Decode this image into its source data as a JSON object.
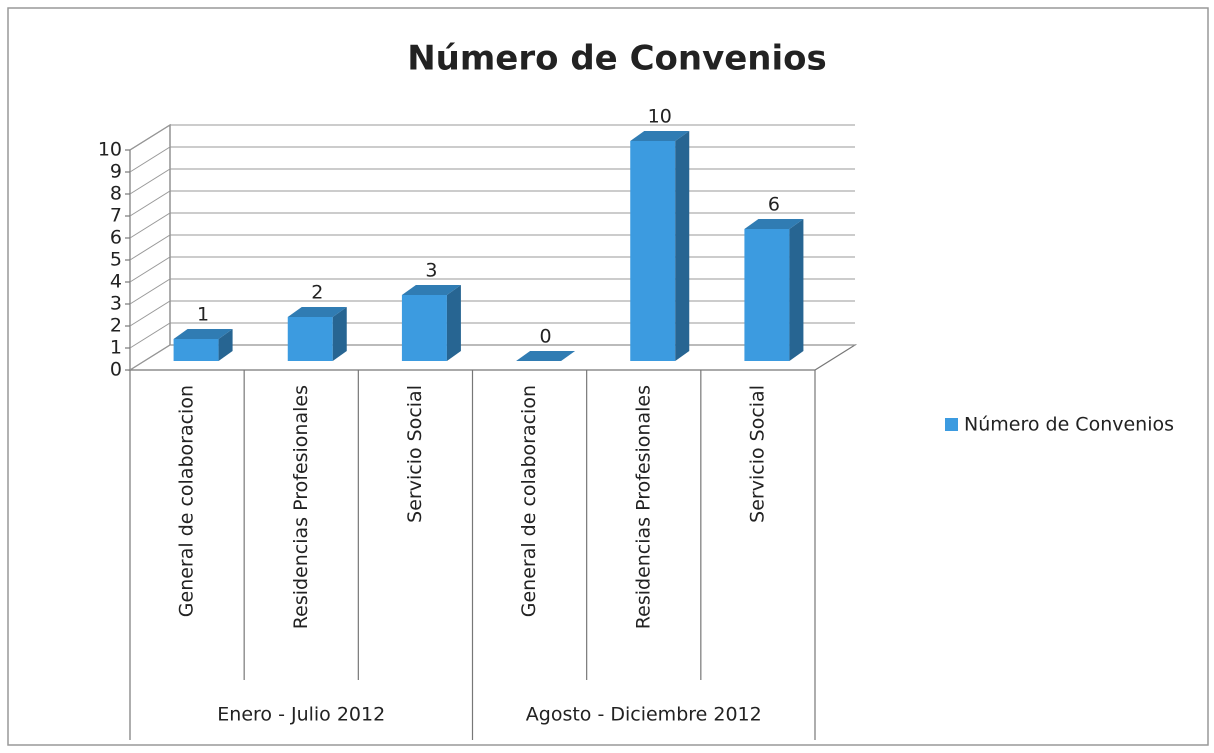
{
  "chart_data": {
    "type": "bar3d",
    "title": "Número de Convenios",
    "categories": [
      "General de colaboracion",
      "Residencias Profesionales",
      "Servicio Social",
      "General de colaboracion",
      "Residencias Profesionales",
      "Servicio Social"
    ],
    "groups": [
      "Enero - Julio 2012",
      "Agosto - Diciembre 2012"
    ],
    "series": [
      {
        "name": "Número de Convenios",
        "color": "#3c9be0",
        "values": [
          1,
          2,
          3,
          0,
          10,
          6
        ]
      }
    ],
    "ylim": [
      0,
      10
    ],
    "yticks": [
      0,
      1,
      2,
      3,
      4,
      5,
      6,
      7,
      8,
      9,
      10
    ],
    "grid": true,
    "legend": "right"
  }
}
